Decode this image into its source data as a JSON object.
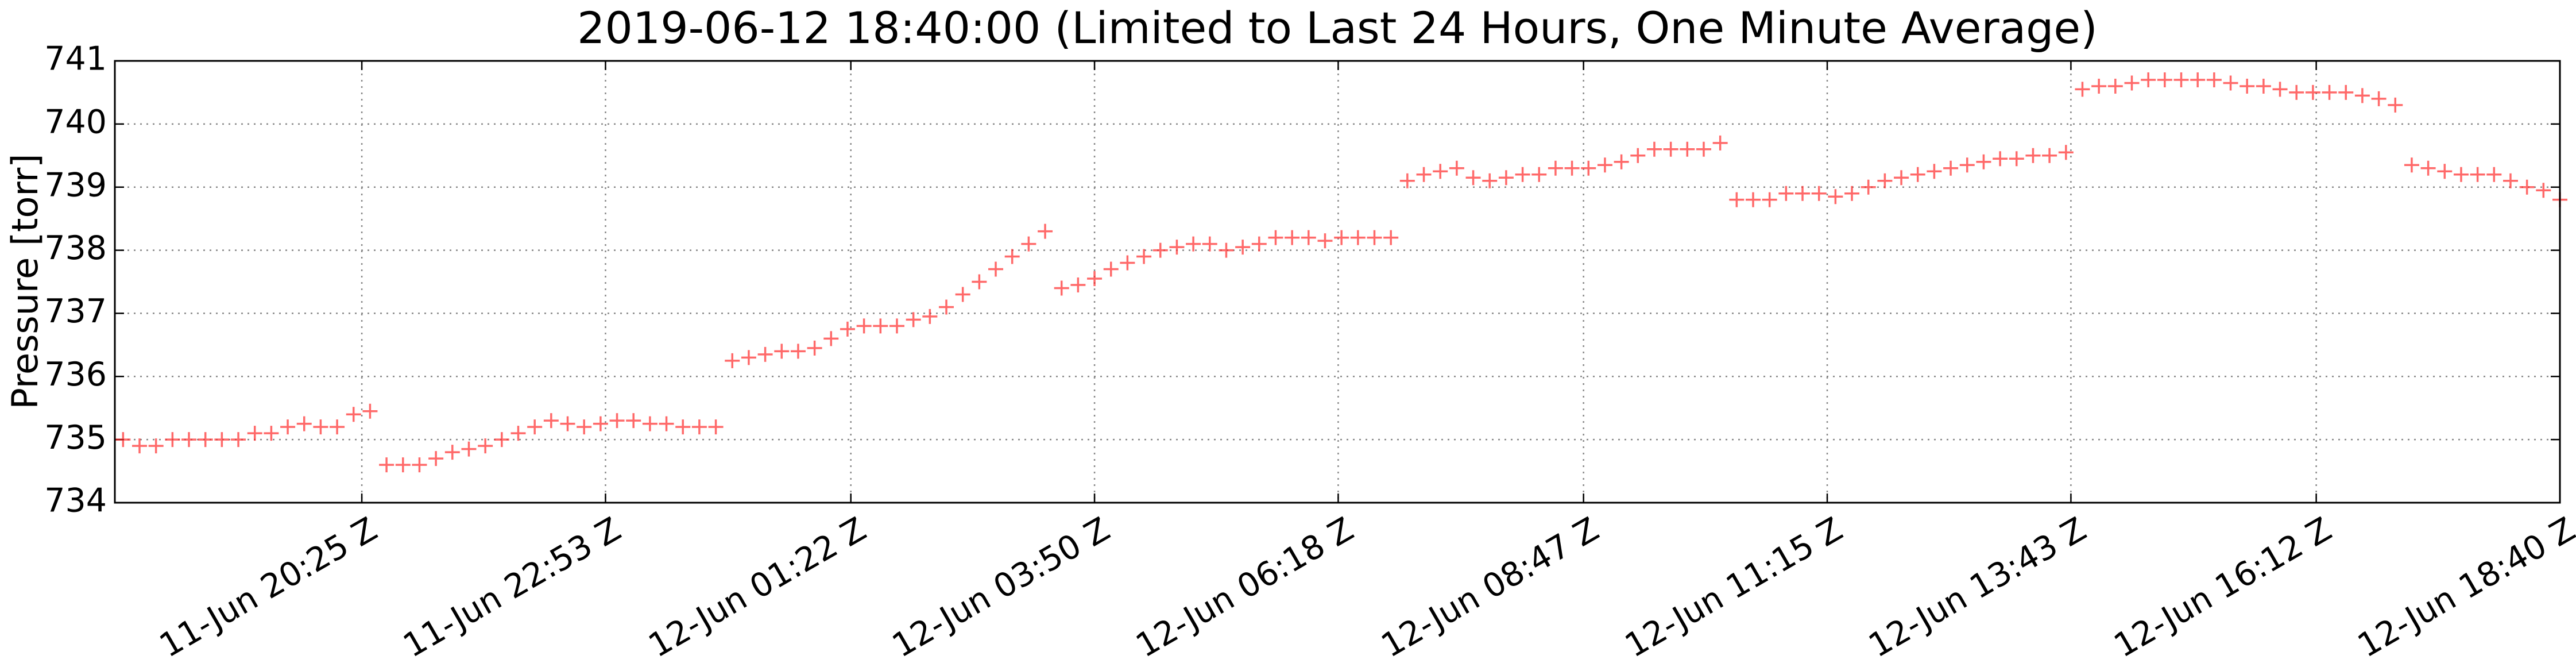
{
  "chart_data": {
    "type": "scatter",
    "title": "2019-06-12 18:40:00 (Limited to Last 24 Hours, One Minute Average)",
    "y_label": "Pressure [torr]",
    "color": "#ff2a2a",
    "marker": "+",
    "grid": true,
    "xlim": [
      "11-Jun 17:55",
      "12-Jun 18:40"
    ],
    "xticks": [
      "11-Jun 20:25 Z",
      "11-Jun 22:53 Z",
      "12-Jun 01:22 Z",
      "12-Jun 03:50 Z",
      "12-Jun 06:18 Z",
      "12-Jun 08:47 Z",
      "12-Jun 11:15 Z",
      "12-Jun 13:43 Z",
      "12-Jun 16:12 Z",
      "12-Jun 18:40 Z"
    ],
    "ylim": [
      734,
      741
    ],
    "yticks": [
      734,
      735,
      736,
      737,
      738,
      739,
      740,
      741
    ],
    "x": [
      "11-Jun 18:00",
      "11-Jun 18:10",
      "11-Jun 18:20",
      "11-Jun 18:30",
      "11-Jun 18:40",
      "11-Jun 18:50",
      "11-Jun 19:00",
      "11-Jun 19:10",
      "11-Jun 19:20",
      "11-Jun 19:30",
      "11-Jun 19:40",
      "11-Jun 19:50",
      "11-Jun 20:00",
      "11-Jun 20:10",
      "11-Jun 20:20",
      "11-Jun 20:30",
      "11-Jun 20:40",
      "11-Jun 20:50",
      "11-Jun 21:00",
      "11-Jun 21:10",
      "11-Jun 21:20",
      "11-Jun 21:30",
      "11-Jun 21:40",
      "11-Jun 21:50",
      "11-Jun 22:00",
      "11-Jun 22:10",
      "11-Jun 22:20",
      "11-Jun 22:30",
      "11-Jun 22:40",
      "11-Jun 22:50",
      "11-Jun 23:00",
      "11-Jun 23:10",
      "11-Jun 23:20",
      "11-Jun 23:30",
      "11-Jun 23:40",
      "11-Jun 23:50",
      "12-Jun 00:00",
      "12-Jun 00:10",
      "12-Jun 00:20",
      "12-Jun 00:30",
      "12-Jun 00:40",
      "12-Jun 00:50",
      "12-Jun 01:00",
      "12-Jun 01:10",
      "12-Jun 01:20",
      "12-Jun 01:30",
      "12-Jun 01:40",
      "12-Jun 01:50",
      "12-Jun 02:00",
      "12-Jun 02:10",
      "12-Jun 02:20",
      "12-Jun 02:30",
      "12-Jun 02:40",
      "12-Jun 02:50",
      "12-Jun 03:00",
      "12-Jun 03:10",
      "12-Jun 03:20",
      "12-Jun 03:30",
      "12-Jun 03:40",
      "12-Jun 03:50",
      "12-Jun 04:00",
      "12-Jun 04:10",
      "12-Jun 04:20",
      "12-Jun 04:30",
      "12-Jun 04:40",
      "12-Jun 04:50",
      "12-Jun 05:00",
      "12-Jun 05:10",
      "12-Jun 05:20",
      "12-Jun 05:30",
      "12-Jun 05:40",
      "12-Jun 05:50",
      "12-Jun 06:00",
      "12-Jun 06:10",
      "12-Jun 06:20",
      "12-Jun 06:30",
      "12-Jun 06:40",
      "12-Jun 06:50",
      "12-Jun 07:00",
      "12-Jun 07:10",
      "12-Jun 07:20",
      "12-Jun 07:30",
      "12-Jun 07:40",
      "12-Jun 07:50",
      "12-Jun 08:00",
      "12-Jun 08:10",
      "12-Jun 08:20",
      "12-Jun 08:30",
      "12-Jun 08:40",
      "12-Jun 08:50",
      "12-Jun 09:00",
      "12-Jun 09:10",
      "12-Jun 09:20",
      "12-Jun 09:30",
      "12-Jun 09:40",
      "12-Jun 09:50",
      "12-Jun 10:00",
      "12-Jun 10:10",
      "12-Jun 10:20",
      "12-Jun 10:30",
      "12-Jun 10:40",
      "12-Jun 10:50",
      "12-Jun 11:00",
      "12-Jun 11:10",
      "12-Jun 11:20",
      "12-Jun 11:30",
      "12-Jun 11:40",
      "12-Jun 11:50",
      "12-Jun 12:00",
      "12-Jun 12:10",
      "12-Jun 12:20",
      "12-Jun 12:30",
      "12-Jun 12:40",
      "12-Jun 12:50",
      "12-Jun 13:00",
      "12-Jun 13:10",
      "12-Jun 13:20",
      "12-Jun 13:30",
      "12-Jun 13:40",
      "12-Jun 13:50",
      "12-Jun 14:00",
      "12-Jun 14:10",
      "12-Jun 14:20",
      "12-Jun 14:30",
      "12-Jun 14:40",
      "12-Jun 14:50",
      "12-Jun 15:00",
      "12-Jun 15:10",
      "12-Jun 15:20",
      "12-Jun 15:30",
      "12-Jun 15:40",
      "12-Jun 15:50",
      "12-Jun 16:00",
      "12-Jun 16:10",
      "12-Jun 16:20",
      "12-Jun 16:30",
      "12-Jun 16:40",
      "12-Jun 16:50",
      "12-Jun 17:00",
      "12-Jun 17:10",
      "12-Jun 17:20",
      "12-Jun 17:30",
      "12-Jun 17:40",
      "12-Jun 17:50",
      "12-Jun 18:00",
      "12-Jun 18:10",
      "12-Jun 18:20",
      "12-Jun 18:30",
      "12-Jun 18:40"
    ],
    "values": [
      735.0,
      734.9,
      734.9,
      735.0,
      735.0,
      735.0,
      735.0,
      735.0,
      735.1,
      735.1,
      735.2,
      735.25,
      735.2,
      735.2,
      735.4,
      735.45,
      734.6,
      734.6,
      734.6,
      734.7,
      734.8,
      734.85,
      734.9,
      735.0,
      735.1,
      735.2,
      735.3,
      735.25,
      735.2,
      735.25,
      735.3,
      735.3,
      735.25,
      735.25,
      735.2,
      735.2,
      735.2,
      736.25,
      736.3,
      736.35,
      736.4,
      736.4,
      736.45,
      736.6,
      736.75,
      736.8,
      736.8,
      736.8,
      736.9,
      736.95,
      737.1,
      737.3,
      737.5,
      737.7,
      737.9,
      738.1,
      738.3,
      737.4,
      737.45,
      737.55,
      737.7,
      737.8,
      737.9,
      738.0,
      738.05,
      738.1,
      738.1,
      738.0,
      738.05,
      738.1,
      738.2,
      738.2,
      738.2,
      738.15,
      738.2,
      738.2,
      738.2,
      738.2,
      739.1,
      739.2,
      739.25,
      739.3,
      739.15,
      739.1,
      739.15,
      739.2,
      739.2,
      739.3,
      739.3,
      739.3,
      739.35,
      739.4,
      739.5,
      739.6,
      739.6,
      739.6,
      739.6,
      739.7,
      738.8,
      738.8,
      738.8,
      738.9,
      738.9,
      738.9,
      738.85,
      738.9,
      739.0,
      739.1,
      739.15,
      739.2,
      739.25,
      739.3,
      739.35,
      739.4,
      739.45,
      739.45,
      739.5,
      739.5,
      739.55,
      740.55,
      740.6,
      740.6,
      740.65,
      740.7,
      740.7,
      740.7,
      740.7,
      740.7,
      740.65,
      740.6,
      740.6,
      740.55,
      740.5,
      740.5,
      740.5,
      740.5,
      740.45,
      740.4,
      740.3,
      739.35,
      739.3,
      739.25,
      739.2,
      739.2,
      739.2,
      739.1,
      739.0,
      738.95,
      738.8
    ]
  }
}
